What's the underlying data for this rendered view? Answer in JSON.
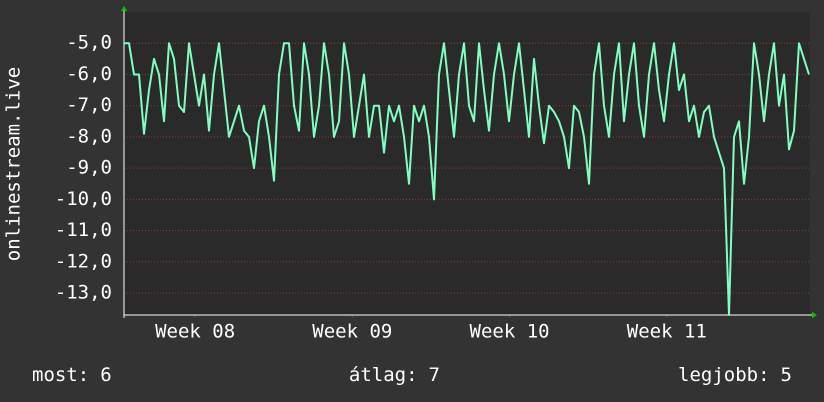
{
  "chart_data": {
    "type": "line",
    "ylabel": "onlinestream.live",
    "ylim": [
      -13.7,
      -4
    ],
    "yticks": [
      {
        "value": -5,
        "label": "-5,0"
      },
      {
        "value": -6,
        "label": "-6,0"
      },
      {
        "value": -7,
        "label": "-7,0"
      },
      {
        "value": -8,
        "label": "-8,0"
      },
      {
        "value": -9,
        "label": "-9,0"
      },
      {
        "value": -10,
        "label": "-10,0"
      },
      {
        "value": -11,
        "label": "-11,0"
      },
      {
        "value": -12,
        "label": "-12,0"
      },
      {
        "value": -13,
        "label": "-13,0"
      }
    ],
    "xlim": [
      0,
      137
    ],
    "xticks": [
      {
        "value": 14.2,
        "label": "Week 08"
      },
      {
        "value": 45.6,
        "label": "Week 09"
      },
      {
        "value": 77,
        "label": "Week 10"
      },
      {
        "value": 108.4,
        "label": "Week 11"
      }
    ],
    "grid": true,
    "series": [
      {
        "color": "#80ffc0",
        "values": [
          -5,
          -5,
          -6,
          -6,
          -7.9,
          -6.5,
          -5.5,
          -6,
          -7.5,
          -5,
          -5.5,
          -7,
          -7.2,
          -5,
          -6,
          -7,
          -6,
          -7.8,
          -6,
          -5,
          -6.5,
          -8,
          -7.5,
          -7,
          -7.8,
          -8,
          -9,
          -7.5,
          -7,
          -8,
          -9.4,
          -6,
          -5,
          -5,
          -7,
          -7.8,
          -5,
          -6,
          -8,
          -7,
          -5,
          -6,
          -8,
          -7.5,
          -5,
          -6,
          -8,
          -7,
          -6,
          -8,
          -7,
          -7,
          -8.5,
          -7,
          -7.5,
          -7,
          -8,
          -9.5,
          -7,
          -7.5,
          -7,
          -8,
          -10,
          -6,
          -5,
          -6.5,
          -8,
          -6,
          -5,
          -7,
          -7.5,
          -5,
          -6.5,
          -7.8,
          -6,
          -5,
          -6,
          -7.5,
          -6,
          -5,
          -6.5,
          -8,
          -5.5,
          -7,
          -8.2,
          -7,
          -7.2,
          -7.5,
          -8,
          -9,
          -7,
          -7.2,
          -8,
          -9.5,
          -6,
          -5,
          -7,
          -8,
          -6,
          -5,
          -7.5,
          -6,
          -5,
          -7,
          -8,
          -6,
          -5,
          -6.5,
          -7.5,
          -6,
          -5,
          -6.5,
          -6,
          -7.5,
          -7,
          -8,
          -7.2,
          -7,
          -8,
          -8.5,
          -9,
          -13.7,
          -8,
          -7.5,
          -9.5,
          -8,
          -5,
          -6,
          -7.5,
          -6,
          -5,
          -7,
          -6,
          -8.4,
          -7.8,
          -5,
          -5.5,
          -6
        ]
      }
    ],
    "stats": [
      {
        "label": "most:",
        "value": 6
      },
      {
        "label": "átlag:",
        "value": 7
      },
      {
        "label": "legjobb:",
        "value": 5
      }
    ]
  }
}
